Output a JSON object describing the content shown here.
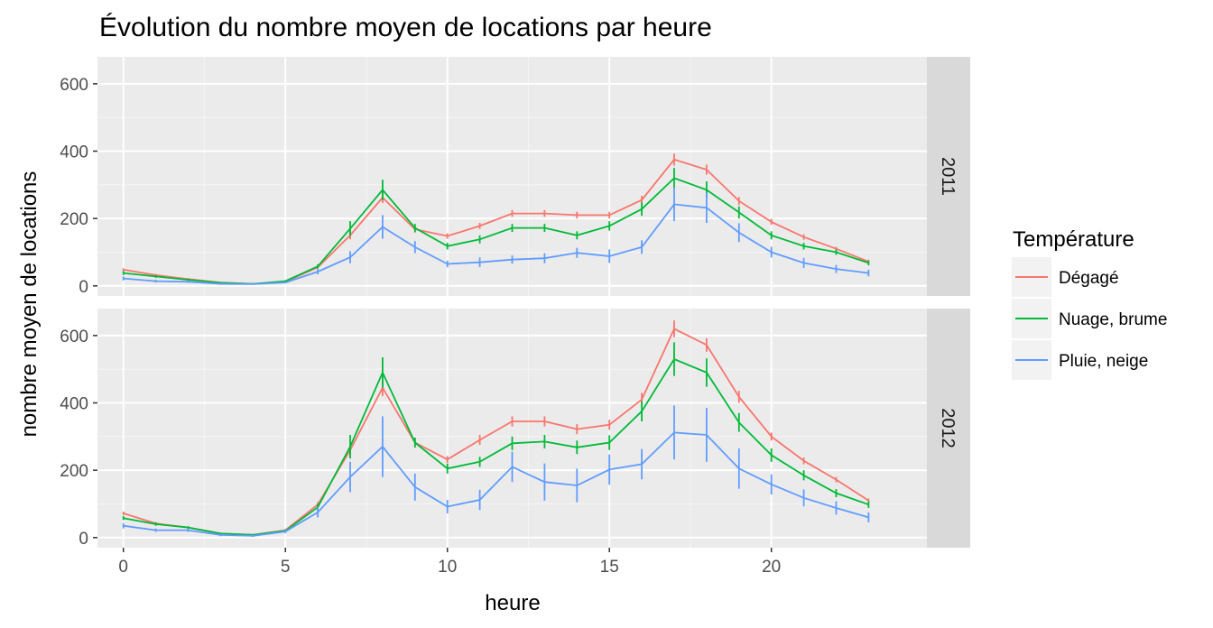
{
  "chart_data": {
    "type": "line",
    "title": "Évolution du nombre moyen de locations par heure",
    "xlabel": "heure",
    "ylabel": "nombre moyen de locations",
    "xlim": [
      -0.8,
      24.8
    ],
    "ylim": [
      -30,
      680
    ],
    "x_ticks": [
      0,
      5,
      10,
      15,
      20
    ],
    "y_ticks": [
      0,
      200,
      400,
      600
    ],
    "grid": true,
    "legend": {
      "title": "Température",
      "position": "right",
      "entries": [
        "Dégagé",
        "Nuage, brume",
        "Pluie, neige"
      ]
    },
    "x": [
      0,
      1,
      2,
      3,
      4,
      5,
      6,
      7,
      8,
      9,
      10,
      11,
      12,
      13,
      14,
      15,
      16,
      17,
      18,
      19,
      20,
      21,
      22,
      23
    ],
    "panels": [
      {
        "label": "2011",
        "series": [
          {
            "name": "Dégagé",
            "color": "#F8766D",
            "values": [
              48,
              32,
              20,
              10,
              6,
              12,
              55,
              150,
              262,
              168,
              148,
              178,
              215,
              215,
              210,
              210,
              255,
              375,
              345,
              252,
              190,
              145,
              110,
              72
            ],
            "err": [
              4,
              3,
              3,
              2,
              2,
              3,
              5,
              12,
              16,
              10,
              8,
              9,
              10,
              10,
              10,
              10,
              12,
              18,
              15,
              12,
              9,
              8,
              6,
              5
            ]
          },
          {
            "name": "Nuage, brume",
            "color": "#00BA38",
            "values": [
              38,
              28,
              18,
              9,
              6,
              14,
              58,
              170,
              285,
              172,
              118,
              138,
              172,
              172,
              150,
              178,
              228,
              320,
              285,
              218,
              150,
              118,
              100,
              68
            ],
            "err": [
              6,
              4,
              3,
              2,
              2,
              3,
              6,
              22,
              30,
              12,
              10,
              12,
              12,
              12,
              12,
              14,
              20,
              30,
              25,
              18,
              12,
              10,
              8,
              7
            ]
          },
          {
            "name": "Pluie, neige",
            "color": "#619CFF",
            "values": [
              22,
              14,
              12,
              6,
              5,
              10,
              42,
              85,
              175,
              115,
              65,
              70,
              78,
              82,
              98,
              88,
              115,
              242,
              232,
              158,
              100,
              68,
              50,
              38
            ],
            "err": [
              6,
              4,
              3,
              3,
              2,
              3,
              8,
              18,
              35,
              18,
              10,
              14,
              12,
              15,
              15,
              20,
              20,
              50,
              45,
              28,
              16,
              15,
              12,
              10
            ]
          }
        ]
      },
      {
        "label": "2012",
        "series": [
          {
            "name": "Dégagé",
            "color": "#F8766D",
            "values": [
              72,
              42,
              30,
              12,
              8,
              22,
              98,
              260,
              445,
              282,
              232,
              290,
              345,
              345,
              322,
              335,
              410,
              620,
              572,
              418,
              300,
              228,
              172,
              110
            ],
            "err": [
              5,
              4,
              3,
              2,
              2,
              3,
              8,
              20,
              25,
              12,
              10,
              15,
              15,
              15,
              15,
              15,
              20,
              25,
              20,
              18,
              12,
              10,
              8,
              6
            ]
          },
          {
            "name": "Nuage, brume",
            "color": "#00BA38",
            "values": [
              58,
              40,
              30,
              12,
              8,
              20,
              90,
              270,
              490,
              282,
              205,
              225,
              280,
              285,
              268,
              282,
              375,
              530,
              490,
              342,
              245,
              185,
              132,
              98
            ],
            "err": [
              6,
              5,
              4,
              3,
              2,
              3,
              10,
              35,
              45,
              15,
              15,
              15,
              20,
              20,
              20,
              22,
              30,
              50,
              42,
              28,
              20,
              15,
              12,
              10
            ]
          },
          {
            "name": "Pluie, neige",
            "color": "#619CFF",
            "values": [
              35,
              22,
              22,
              8,
              5,
              18,
              75,
              180,
              270,
              150,
              92,
              112,
              210,
              165,
              155,
              202,
              218,
              312,
              305,
              205,
              158,
              118,
              88,
              60
            ],
            "err": [
              8,
              5,
              5,
              4,
              3,
              5,
              15,
              45,
              90,
              40,
              20,
              30,
              45,
              55,
              50,
              45,
              45,
              80,
              80,
              60,
              30,
              25,
              20,
              15
            ]
          }
        ]
      }
    ]
  }
}
